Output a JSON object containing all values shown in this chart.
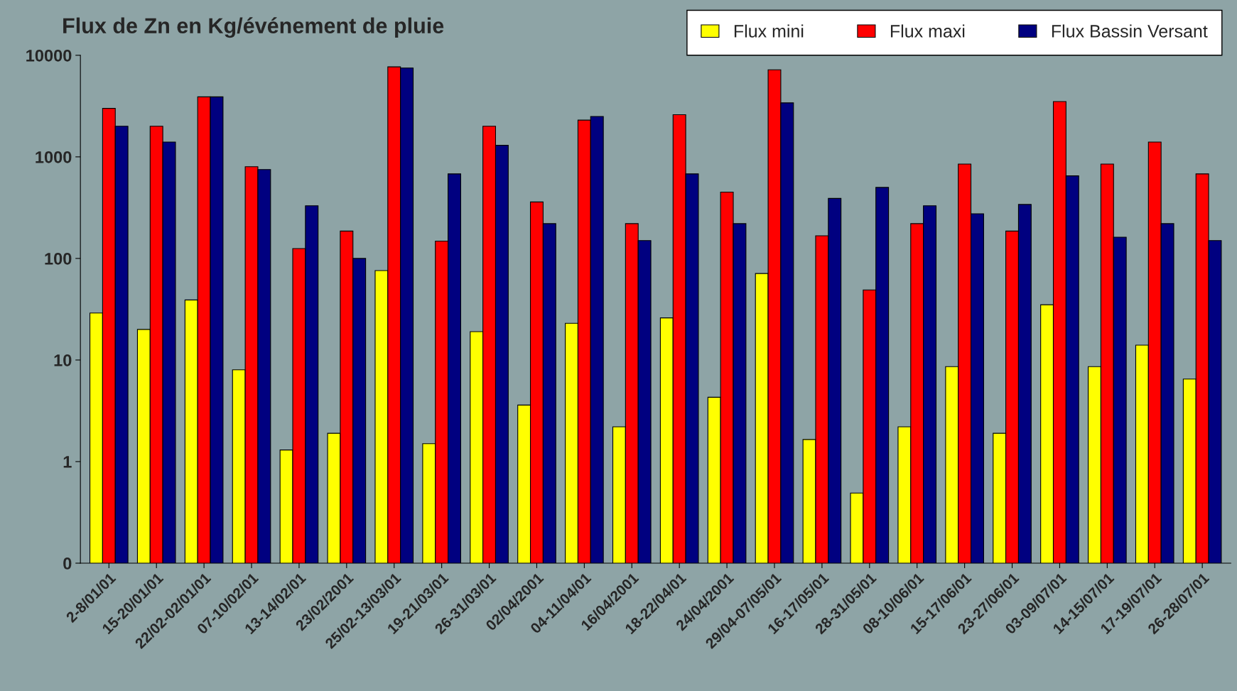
{
  "chart_data": {
    "type": "bar",
    "title": "Flux de Zn en Kg/événement de pluie",
    "categories": [
      "2-8/01/01",
      "15-20/01/01",
      "22/02-02/01/01",
      "07-10/02/01",
      "13-14/02/01",
      "23/02/2001",
      "25/02-13/03/01",
      "19-21/03/01",
      "26-31/03/01",
      "02/04/2001",
      "04-11/04/01",
      "16/04/2001",
      "18-22/04/01",
      "24/04/2001",
      "29/04-07/05/01",
      "16-17/05/01",
      "28-31/05/01",
      "08-10/06/01",
      "15-17/06/01",
      "23-27/06/01",
      "03-09/07/01",
      "14-15/07/01",
      "17-19/07/01",
      "26-28/07/01"
    ],
    "series": [
      {
        "name": "Flux mini",
        "color": "#ffff00",
        "values": [
          29,
          20,
          39,
          8,
          1.3,
          1.9,
          76,
          1.5,
          19,
          3.6,
          23,
          2.2,
          26,
          4.3,
          71,
          1.65,
          0.49,
          2.2,
          8.6,
          1.9,
          35,
          8.6,
          14,
          6.5
        ]
      },
      {
        "name": "Flux maxi",
        "color": "#ff0000",
        "values": [
          3000,
          2000,
          3900,
          800,
          125,
          186,
          7700,
          148,
          2000,
          360,
          2300,
          220,
          2600,
          450,
          7200,
          167,
          49,
          220,
          850,
          186,
          3500,
          850,
          1400,
          680
        ]
      },
      {
        "name": "Flux Bassin Versant",
        "color": "#000080",
        "values": [
          2000,
          1400,
          3900,
          750,
          330,
          100,
          7500,
          680,
          1300,
          220,
          2500,
          150,
          680,
          220,
          3400,
          390,
          500,
          330,
          275,
          340,
          650,
          162,
          220,
          150
        ]
      }
    ],
    "log": true,
    "ylim": [
      0.1,
      10000
    ],
    "yticks": [
      {
        "value": 0.1,
        "label": "0"
      },
      1,
      10,
      100,
      1000,
      10000
    ],
    "legend": "top right",
    "grid": false
  }
}
